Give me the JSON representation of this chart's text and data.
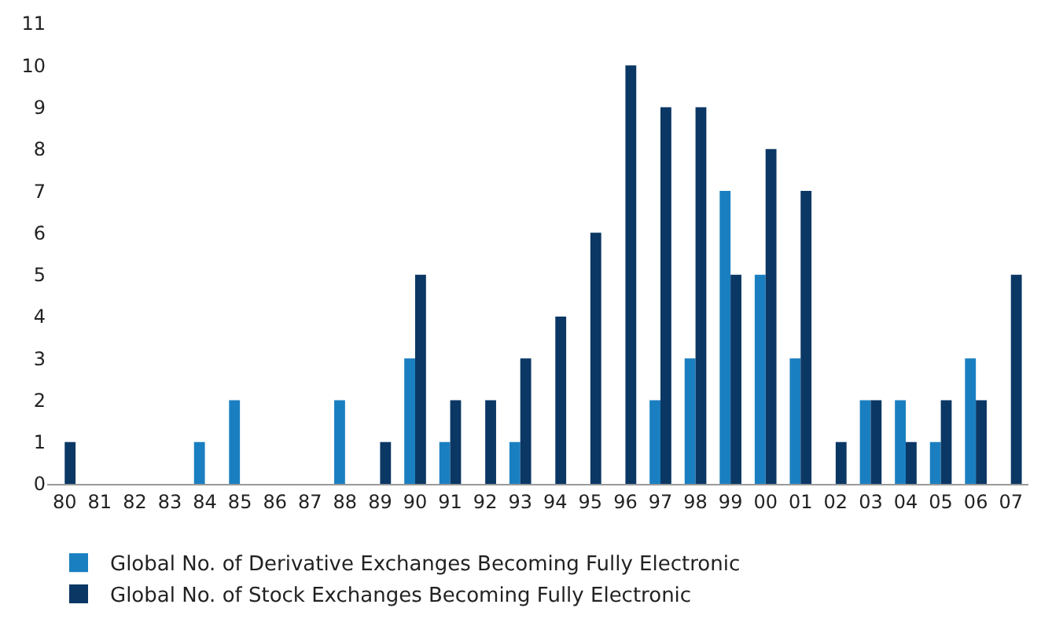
{
  "chart_data": {
    "type": "bar",
    "categories": [
      "80",
      "81",
      "82",
      "83",
      "84",
      "85",
      "86",
      "87",
      "88",
      "89",
      "90",
      "91",
      "92",
      "93",
      "94",
      "95",
      "96",
      "97",
      "98",
      "99",
      "00",
      "01",
      "02",
      "03",
      "04",
      "05",
      "06",
      "07"
    ],
    "series": [
      {
        "name": "Global No. of Derivative Exchanges Becoming Fully Electronic",
        "color": "#1a7fc1",
        "values": [
          0,
          0,
          0,
          0,
          1,
          2,
          0,
          0,
          2,
          0,
          3,
          1,
          0,
          1,
          0,
          0,
          0,
          2,
          3,
          7,
          5,
          3,
          0,
          2,
          2,
          1,
          3,
          0
        ]
      },
      {
        "name": "Global No. of Stock Exchanges Becoming Fully Electronic",
        "color": "#0b3764",
        "values": [
          1,
          0,
          0,
          0,
          0,
          0,
          0,
          0,
          0,
          1,
          5,
          2,
          2,
          3,
          4,
          6,
          10,
          9,
          9,
          5,
          8,
          7,
          1,
          2,
          1,
          2,
          2,
          5
        ]
      }
    ],
    "ylim": [
      0,
      11
    ],
    "yticks": [
      0,
      1,
      2,
      3,
      4,
      5,
      6,
      7,
      8,
      9,
      10,
      11
    ],
    "grid": false,
    "legend": "bottom"
  }
}
